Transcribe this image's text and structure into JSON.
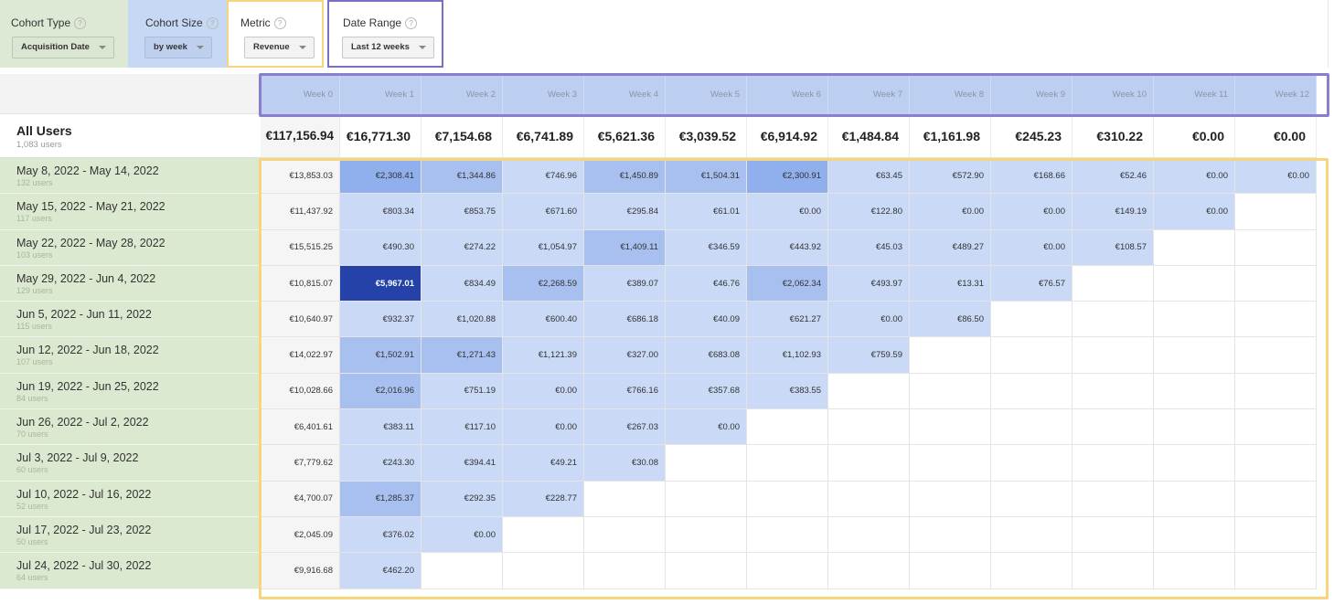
{
  "controls": {
    "cohort_type": {
      "label": "Cohort Type",
      "value": "Acquisition Date",
      "help": "?"
    },
    "cohort_size": {
      "label": "Cohort Size",
      "value": "by week",
      "help": "?"
    },
    "metric": {
      "label": "Metric",
      "value": "Revenue",
      "help": "?"
    },
    "date_range": {
      "label": "Date Range",
      "value": "Last 12 weeks",
      "help": "?"
    }
  },
  "columns": [
    "Week 0",
    "Week 1",
    "Week 2",
    "Week 3",
    "Week 4",
    "Week 5",
    "Week 6",
    "Week 7",
    "Week 8",
    "Week 9",
    "Week 10",
    "Week 11",
    "Week 12"
  ],
  "all_users": {
    "title": "All Users",
    "subtitle": "1,083 users",
    "values": [
      "€117,156.94",
      "€16,771.30",
      "€7,154.68",
      "€6,741.89",
      "€5,621.36",
      "€3,039.52",
      "€6,914.92",
      "€1,484.84",
      "€1,161.98",
      "€245.23",
      "€310.22",
      "€0.00",
      "€0.00"
    ]
  },
  "rows": [
    {
      "label": "May 8, 2022 - May 14, 2022",
      "users": "132 users",
      "values": [
        "€13,853.03",
        "€2,308.41",
        "€1,344.86",
        "€746.96",
        "€1,450.89",
        "€1,504.31",
        "€2,300.91",
        "€63.45",
        "€572.90",
        "€168.66",
        "€52.46",
        "€0.00",
        "€0.00"
      ],
      "levels": [
        0,
        3,
        2,
        1,
        2,
        2,
        3,
        1,
        1,
        1,
        1,
        1,
        1
      ]
    },
    {
      "label": "May 15, 2022 - May 21, 2022",
      "users": "117 users",
      "values": [
        "€11,437.92",
        "€803.34",
        "€853.75",
        "€671.60",
        "€295.84",
        "€61.01",
        "€0.00",
        "€122.80",
        "€0.00",
        "€0.00",
        "€149.19",
        "€0.00"
      ],
      "levels": [
        0,
        1,
        1,
        1,
        1,
        1,
        1,
        1,
        1,
        1,
        1,
        1
      ]
    },
    {
      "label": "May 22, 2022 - May 28, 2022",
      "users": "103 users",
      "values": [
        "€15,515.25",
        "€490.30",
        "€274.22",
        "€1,054.97",
        "€1,409.11",
        "€346.59",
        "€443.92",
        "€45.03",
        "€489.27",
        "€0.00",
        "€108.57"
      ],
      "levels": [
        0,
        1,
        1,
        1,
        2,
        1,
        1,
        1,
        1,
        1,
        1
      ]
    },
    {
      "label": "May 29, 2022 - Jun 4, 2022",
      "users": "129 users",
      "values": [
        "€10,815.07",
        "€5,967.01",
        "€834.49",
        "€2,268.59",
        "€389.07",
        "€46.76",
        "€2,062.34",
        "€493.97",
        "€13.31",
        "€76.57"
      ],
      "levels": [
        0,
        4,
        1,
        2,
        1,
        1,
        2,
        1,
        1,
        1
      ]
    },
    {
      "label": "Jun 5, 2022 - Jun 11, 2022",
      "users": "115 users",
      "values": [
        "€10,640.97",
        "€932.37",
        "€1,020.88",
        "€600.40",
        "€686.18",
        "€40.09",
        "€621.27",
        "€0.00",
        "€86.50"
      ],
      "levels": [
        0,
        1,
        1,
        1,
        1,
        1,
        1,
        1,
        1
      ]
    },
    {
      "label": "Jun 12, 2022 - Jun 18, 2022",
      "users": "107 users",
      "values": [
        "€14,022.97",
        "€1,502.91",
        "€1,271.43",
        "€1,121.39",
        "€327.00",
        "€683.08",
        "€1,102.93",
        "€759.59"
      ],
      "levels": [
        0,
        2,
        2,
        1,
        1,
        1,
        1,
        1
      ]
    },
    {
      "label": "Jun 19, 2022 - Jun 25, 2022",
      "users": "84 users",
      "values": [
        "€10,028.66",
        "€2,016.96",
        "€751.19",
        "€0.00",
        "€766.16",
        "€357.68",
        "€383.55"
      ],
      "levels": [
        0,
        2,
        1,
        1,
        1,
        1,
        1
      ]
    },
    {
      "label": "Jun 26, 2022 - Jul 2, 2022",
      "users": "70 users",
      "values": [
        "€6,401.61",
        "€383.11",
        "€117.10",
        "€0.00",
        "€267.03",
        "€0.00"
      ],
      "levels": [
        0,
        1,
        1,
        1,
        1,
        1
      ]
    },
    {
      "label": "Jul 3, 2022 - Jul 9, 2022",
      "users": "60 users",
      "values": [
        "€7,779.62",
        "€243.30",
        "€394.41",
        "€49.21",
        "€30.08"
      ],
      "levels": [
        0,
        1,
        1,
        1,
        1
      ]
    },
    {
      "label": "Jul 10, 2022 - Jul 16, 2022",
      "users": "52 users",
      "values": [
        "€4,700.07",
        "€1,285.37",
        "€292.35",
        "€228.77"
      ],
      "levels": [
        0,
        2,
        1,
        1
      ]
    },
    {
      "label": "Jul 17, 2022 - Jul 23, 2022",
      "users": "50 users",
      "values": [
        "€2,045.09",
        "€376.02",
        "€0.00"
      ],
      "levels": [
        0,
        1,
        1
      ]
    },
    {
      "label": "Jul 24, 2022 - Jul 30, 2022",
      "users": "64 users",
      "values": [
        "€9,916.68",
        "€462.20"
      ],
      "levels": [
        0,
        1
      ]
    }
  ]
}
